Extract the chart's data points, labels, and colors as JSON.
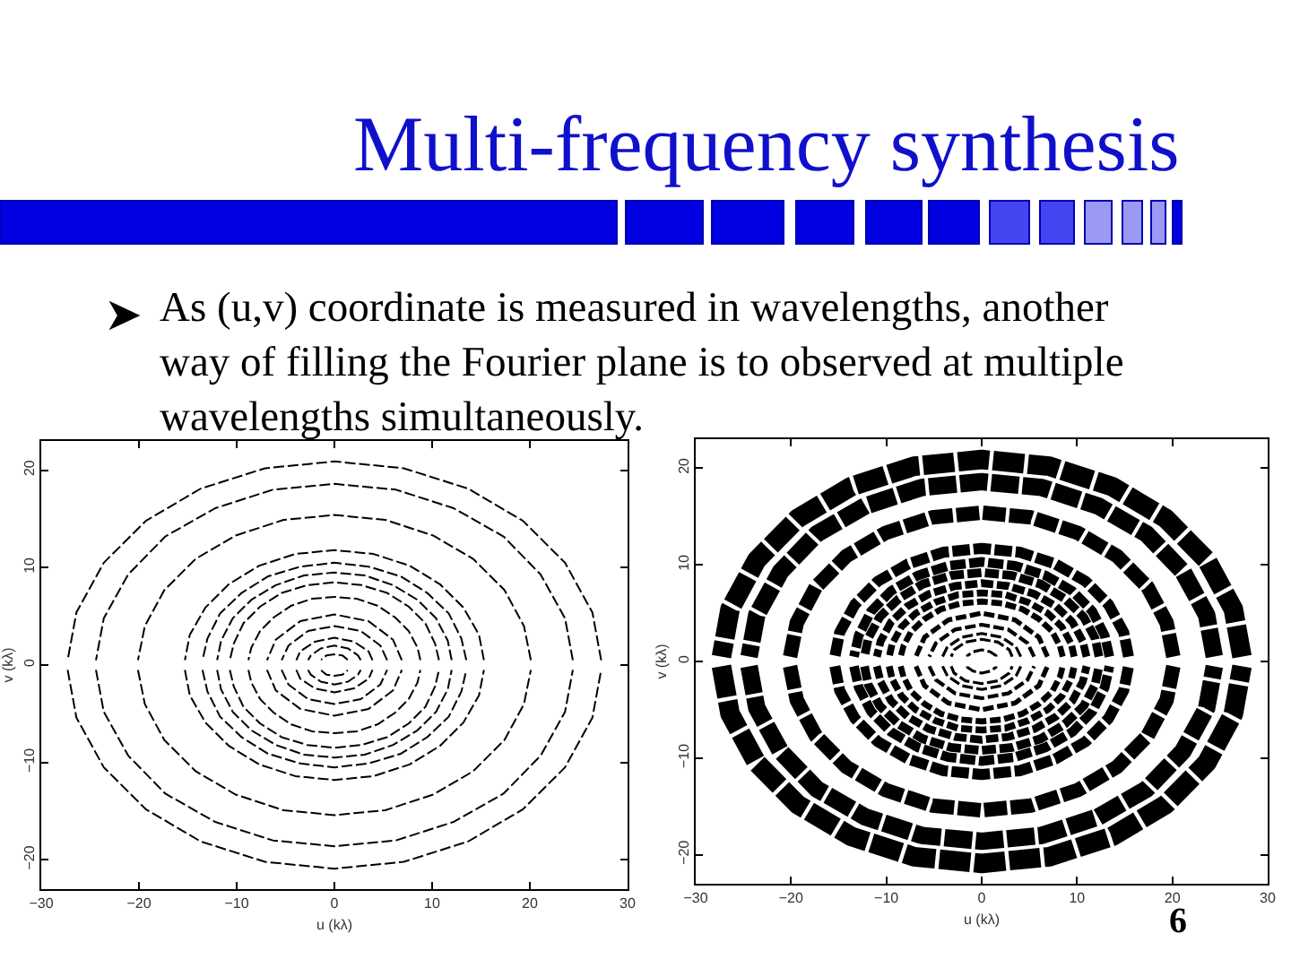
{
  "chart_data": [
    {
      "type": "line",
      "title": "Multi-frequency synthesis",
      "subtitle": "As (u,v) coordinate is measured in wavelengths, another\nway of filling the Fourier plane is to observed at multiple\nwavelengths simultaneously.",
      "xlabel": "u (kλ)",
      "ylabel": "v (kλ)",
      "xlim": [
        -30,
        30
      ],
      "ylim": [
        -23,
        23
      ],
      "xticks": [
        -30,
        -20,
        -10,
        0,
        10,
        20,
        30
      ],
      "yticks": [
        -20,
        -10,
        0,
        10,
        20
      ],
      "grid": false,
      "marker": "none",
      "line_style": "dashed",
      "series": [
        {
          "color": "#000000",
          "x": [
            27.3,
            26.4,
            23.6,
            19.3,
            13.7,
            7.1,
            0,
            -7.1,
            -13.7,
            -19.3,
            -23.6,
            -26.4,
            -27.3
          ],
          "values": [
            0.5,
            5.4,
            10.5,
            14.8,
            18.1,
            20.2,
            20.9,
            20.2,
            18.1,
            14.8,
            10.5,
            5.4,
            0.5
          ]
        },
        {
          "color": "#000000",
          "x": [
            -27.3,
            -26.4,
            -23.6,
            -19.3,
            -13.7,
            -7.1,
            0,
            7.1,
            13.7,
            19.3,
            23.6,
            26.4,
            27.3
          ],
          "values": [
            -0.5,
            -5.4,
            -10.5,
            -14.8,
            -18.1,
            -20.2,
            -20.9,
            -20.2,
            -18.1,
            -14.8,
            -10.5,
            -5.4,
            -0.5
          ]
        },
        {
          "color": "#000000",
          "x": [
            24.4,
            23.6,
            21.1,
            17.3,
            12.2,
            6.3,
            0,
            -6.3,
            -12.2,
            -17.3,
            -21.1,
            -23.6,
            -24.4
          ],
          "values": [
            0.5,
            4.8,
            9.3,
            13.2,
            16.1,
            18,
            18.6,
            18,
            16.1,
            13.2,
            9.3,
            4.8,
            0.5
          ]
        },
        {
          "color": "#000000",
          "x": [
            -24.4,
            -23.6,
            -21.1,
            -17.3,
            -12.2,
            -6.3,
            0,
            6.3,
            12.2,
            17.3,
            21.1,
            23.6,
            24.4
          ],
          "values": [
            -0.5,
            -4.8,
            -9.3,
            -13.2,
            -16.1,
            -18,
            -18.6,
            -18,
            -16.1,
            -13.2,
            -9.3,
            -4.8,
            -0.5
          ]
        },
        {
          "color": "#000000",
          "x": [
            20.1,
            19.4,
            17.4,
            14.2,
            10.1,
            5.2,
            0,
            -5.2,
            -10.1,
            -14.2,
            -17.4,
            -19.4,
            -20.1
          ],
          "values": [
            0.5,
            4,
            7.7,
            10.9,
            13.3,
            14.9,
            15.4,
            14.9,
            13.3,
            10.9,
            7.7,
            4,
            0.5
          ]
        },
        {
          "color": "#000000",
          "x": [
            -20.1,
            -19.4,
            -17.4,
            -14.2,
            -10.1,
            -5.2,
            0,
            5.2,
            10.1,
            14.2,
            17.4,
            19.4,
            20.1
          ],
          "values": [
            -0.5,
            -4,
            -7.7,
            -10.9,
            -13.3,
            -14.9,
            -15.4,
            -14.9,
            -13.3,
            -10.9,
            -7.7,
            -4,
            -0.5
          ]
        },
        {
          "color": "#000000",
          "x": [
            15.3,
            14.8,
            13.2,
            10.8,
            7.7,
            4,
            0,
            -4,
            -7.7,
            -10.8,
            -13.2,
            -14.8,
            -15.3
          ],
          "values": [
            0.5,
            3.1,
            5.9,
            8.3,
            10.2,
            11.4,
            11.8,
            11.4,
            10.2,
            8.3,
            5.9,
            3.1,
            0.5
          ]
        },
        {
          "color": "#000000",
          "x": [
            -15.3,
            -14.8,
            -13.2,
            -10.8,
            -7.7,
            -4,
            0,
            4,
            7.7,
            10.8,
            13.2,
            14.8,
            15.3
          ],
          "values": [
            -0.5,
            -3.1,
            -5.9,
            -8.3,
            -10.2,
            -11.4,
            -11.8,
            -11.4,
            -10.2,
            -8.3,
            -5.9,
            -3.1,
            -0.5
          ]
        },
        {
          "color": "#000000",
          "x": [
            13.5,
            13,
            11.7,
            9.5,
            6.8,
            3.5,
            0,
            -3.5,
            -6.8,
            -9.5,
            -11.7,
            -13,
            -13.5
          ],
          "values": [
            0.5,
            2.7,
            5.3,
            7.4,
            9.1,
            10.1,
            10.5,
            10.1,
            9.1,
            7.4,
            5.3,
            2.7,
            0.5
          ]
        },
        {
          "color": "#000000",
          "x": [
            -13.5,
            -13,
            -11.7,
            -9.5,
            -6.8,
            -3.5,
            0,
            3.5,
            6.8,
            9.5,
            11.7,
            13,
            13.5
          ],
          "values": [
            -0.5,
            -2.7,
            -5.3,
            -7.4,
            -9.1,
            -10.1,
            -10.5,
            -10.1,
            -9.1,
            -7.4,
            -5.3,
            -2.7,
            -0.5
          ]
        },
        {
          "color": "#000000",
          "x": [
            12,
            11.6,
            10.4,
            8.5,
            6,
            3.1,
            0,
            -3.1,
            -6,
            -8.5,
            -10.4,
            -11.6,
            -12
          ],
          "values": [
            0.5,
            2.5,
            4.8,
            6.7,
            8.2,
            9.2,
            9.5,
            9.2,
            8.2,
            6.7,
            4.8,
            2.5,
            0.5
          ]
        },
        {
          "color": "#000000",
          "x": [
            -12,
            -11.6,
            -10.4,
            -8.5,
            -6,
            -3.1,
            0,
            3.1,
            6,
            8.5,
            10.4,
            11.6,
            12
          ],
          "values": [
            -0.5,
            -2.5,
            -4.8,
            -6.7,
            -8.2,
            -9.2,
            -9.5,
            -9.2,
            -8.2,
            -6.7,
            -4.8,
            -2.5,
            -0.5
          ]
        },
        {
          "color": "#000000",
          "x": [
            10.7,
            10.3,
            9.3,
            7.6,
            5.4,
            2.8,
            0,
            -2.8,
            -5.4,
            -7.6,
            -9.3,
            -10.3,
            -10.7
          ],
          "values": [
            0.5,
            2.2,
            4.3,
            6,
            7.4,
            8.2,
            8.5,
            8.2,
            7.4,
            6,
            4.3,
            2.2,
            0.5
          ]
        },
        {
          "color": "#000000",
          "x": [
            -10.7,
            -10.3,
            -9.3,
            -7.6,
            -5.4,
            -2.8,
            0,
            2.8,
            5.4,
            7.6,
            9.3,
            10.3,
            10.7
          ],
          "values": [
            -0.5,
            -2.2,
            -4.3,
            -6,
            -7.4,
            -8.2,
            -8.5,
            -8.2,
            -7.4,
            -6,
            -4.3,
            -2.2,
            -0.5
          ]
        },
        {
          "color": "#000000",
          "x": [
            8.8,
            8.5,
            7.6,
            6.2,
            4.4,
            2.3,
            0,
            -2.3,
            -4.4,
            -6.2,
            -7.6,
            -8.5,
            -8.8
          ],
          "values": [
            0.5,
            1.8,
            3.5,
            4.9,
            6.1,
            6.8,
            7,
            6.8,
            6.1,
            4.9,
            3.5,
            1.8,
            0.5
          ]
        },
        {
          "color": "#000000",
          "x": [
            -8.8,
            -8.5,
            -7.6,
            -6.2,
            -4.4,
            -2.3,
            0,
            2.3,
            4.4,
            6.2,
            7.6,
            8.5,
            8.8
          ],
          "values": [
            -0.5,
            -1.8,
            -3.5,
            -4.9,
            -6.1,
            -6.8,
            -7,
            -6.8,
            -6.1,
            -4.9,
            -3.5,
            -1.8,
            -0.5
          ]
        },
        {
          "color": "#000000",
          "x": [
            6.9,
            6,
            3.5,
            0,
            -3.5,
            -6,
            -6.9
          ],
          "values": [
            0.5,
            2.6,
            4.5,
            5.2,
            4.5,
            2.6,
            0.5
          ]
        },
        {
          "color": "#000000",
          "x": [
            -6.9,
            -6,
            -3.5,
            0,
            3.5,
            6,
            6.9
          ],
          "values": [
            -0.5,
            -2.6,
            -4.5,
            -5.2,
            -4.5,
            -2.6,
            -0.5
          ]
        },
        {
          "color": "#000000",
          "x": [
            5.4,
            4.7,
            2.7,
            0,
            -2.7,
            -4.7,
            -5.4
          ],
          "values": [
            0.5,
            2,
            3.5,
            4,
            3.5,
            2,
            0.5
          ]
        },
        {
          "color": "#000000",
          "x": [
            -5.4,
            -4.7,
            -2.7,
            0,
            2.7,
            4.7,
            5.4
          ],
          "values": [
            -0.5,
            -2,
            -3.5,
            -4,
            -3.5,
            -2,
            -0.5
          ]
        },
        {
          "color": "#000000",
          "x": [
            3.9,
            3.5,
            2,
            0,
            -2,
            -3.5,
            -3.9
          ],
          "values": [
            0.5,
            1.4,
            2.4,
            2.8,
            2.4,
            1.4,
            0.5
          ]
        },
        {
          "color": "#000000",
          "x": [
            -3.9,
            -3.5,
            -2,
            0,
            2,
            3.5,
            3.9
          ],
          "values": [
            -0.5,
            -1.4,
            -2.4,
            -2.8,
            -2.4,
            -1.4,
            -0.5
          ]
        },
        {
          "color": "#000000",
          "x": [
            2.7,
            2.4,
            1.4,
            0,
            -1.4,
            -2.4,
            -2.7
          ],
          "values": [
            0.5,
            1,
            1.7,
            2,
            1.7,
            1,
            0.5
          ]
        },
        {
          "color": "#000000",
          "x": [
            -2.7,
            -2.4,
            -1.4,
            0,
            1.4,
            2.4,
            2.7
          ],
          "values": [
            -0.5,
            -1,
            -1.7,
            -2,
            -1.7,
            -1,
            -0.5
          ]
        },
        {
          "color": "#000000",
          "x": [
            1.3,
            1.3,
            0.8,
            0,
            -0.8,
            -1.3,
            -1.3
          ],
          "values": [
            0.5,
            0.6,
            1,
            1.1,
            1,
            0.6,
            0.5
          ]
        },
        {
          "color": "#000000",
          "x": [
            -1.3,
            -1.3,
            -0.8,
            0,
            0.8,
            1.3,
            1.3
          ],
          "values": [
            -0.5,
            -0.6,
            -1,
            -1.1,
            -1,
            -0.6,
            -0.5
          ]
        }
      ]
    },
    {
      "type": "line",
      "xlabel": "u (kλ)",
      "ylabel": "v (kλ)",
      "xlim": [
        -30,
        30
      ],
      "ylim": [
        -23,
        23
      ],
      "xticks": [
        -30,
        -20,
        -10,
        0,
        10,
        20,
        30
      ],
      "yticks": [
        -20,
        -10,
        0,
        10,
        20
      ],
      "grid": false,
      "marker": "none",
      "line_style": "dashed",
      "annotations": [
        "6"
      ],
      "series": [
        {
          "color": "#000000",
          "x": [
            27.3,
            26.4,
            23.6,
            19.3,
            13.7,
            7.1,
            0,
            -7.1,
            -13.7,
            -19.3,
            -23.6,
            -26.4,
            -27.3
          ],
          "values": [
            0.5,
            5.4,
            10.5,
            14.8,
            18.1,
            20.2,
            20.9,
            20.2,
            18.1,
            14.8,
            10.5,
            5.4,
            0.5
          ]
        },
        {
          "color": "#000000",
          "x": [
            -27.3,
            -26.4,
            -23.6,
            -19.3,
            -13.7,
            -7.1,
            0,
            7.1,
            13.7,
            19.3,
            23.6,
            26.4,
            27.3
          ],
          "values": [
            -0.5,
            -5.4,
            -10.5,
            -14.8,
            -18.1,
            -20.2,
            -20.9,
            -20.2,
            -18.1,
            -14.8,
            -10.5,
            -5.4,
            -0.5
          ]
        },
        {
          "color": "#000000",
          "x": [
            24.4,
            23.6,
            21.1,
            17.3,
            12.2,
            6.3,
            0,
            -6.3,
            -12.2,
            -17.3,
            -21.1,
            -23.6,
            -24.4
          ],
          "values": [
            0.5,
            4.8,
            9.3,
            13.2,
            16.1,
            18,
            18.6,
            18,
            16.1,
            13.2,
            9.3,
            4.8,
            0.5
          ]
        },
        {
          "color": "#000000",
          "x": [
            -24.4,
            -23.6,
            -21.1,
            -17.3,
            -12.2,
            -6.3,
            0,
            6.3,
            12.2,
            17.3,
            21.1,
            23.6,
            24.4
          ],
          "values": [
            -0.5,
            -4.8,
            -9.3,
            -13.2,
            -16.1,
            -18,
            -18.6,
            -18,
            -16.1,
            -13.2,
            -9.3,
            -4.8,
            -0.5
          ]
        },
        {
          "color": "#000000",
          "x": [
            20.1,
            19.4,
            17.4,
            14.2,
            10.1,
            5.2,
            0,
            -5.2,
            -10.1,
            -14.2,
            -17.4,
            -19.4,
            -20.1
          ],
          "values": [
            0.5,
            4,
            7.7,
            10.9,
            13.3,
            14.9,
            15.4,
            14.9,
            13.3,
            10.9,
            7.7,
            4,
            0.5
          ]
        },
        {
          "color": "#000000",
          "x": [
            -20.1,
            -19.4,
            -17.4,
            -14.2,
            -10.1,
            -5.2,
            0,
            5.2,
            10.1,
            14.2,
            17.4,
            19.4,
            20.1
          ],
          "values": [
            -0.5,
            -4,
            -7.7,
            -10.9,
            -13.3,
            -14.9,
            -15.4,
            -14.9,
            -13.3,
            -10.9,
            -7.7,
            -4,
            -0.5
          ]
        },
        {
          "color": "#000000",
          "x": [
            15.4,
            14.9,
            13.3,
            10.9,
            7.7,
            4,
            0,
            -4,
            -7.7,
            -10.9,
            -13.3,
            -14.9,
            -15.4
          ],
          "values": [
            0.5,
            3,
            5.9,
            8.3,
            10.1,
            11.3,
            11.7,
            11.3,
            10.1,
            8.3,
            5.9,
            3,
            0.5
          ]
        },
        {
          "color": "#000000",
          "x": [
            -15.4,
            -14.9,
            -13.3,
            -10.9,
            -7.7,
            -4,
            0,
            4,
            7.7,
            10.9,
            13.3,
            14.9,
            15.4
          ],
          "values": [
            -0.5,
            -3,
            -5.9,
            -8.3,
            -10.1,
            -11.3,
            -11.7,
            -11.3,
            -10.1,
            -8.3,
            -5.9,
            -3,
            -0.5
          ]
        },
        {
          "color": "#000000",
          "x": [
            13.4,
            12.9,
            11.6,
            9.5,
            6.7,
            3.5,
            0,
            -3.5,
            -6.7,
            -9.5,
            -11.6,
            -12.9,
            -13.4
          ],
          "values": [
            0.5,
            2.7,
            5.2,
            7.3,
            8.9,
            9.9,
            10.3,
            9.9,
            8.9,
            7.3,
            5.2,
            2.7,
            0.5
          ]
        },
        {
          "color": "#000000",
          "x": [
            -13.4,
            -12.9,
            -11.6,
            -9.5,
            -6.7,
            -3.5,
            0,
            3.5,
            6.7,
            9.5,
            11.6,
            12.9,
            13.4
          ],
          "values": [
            -0.5,
            -2.7,
            -5.2,
            -7.3,
            -8.9,
            -9.9,
            -10.3,
            -9.9,
            -8.9,
            -7.3,
            -5.2,
            -2.7,
            -0.5
          ]
        },
        {
          "color": "#000000",
          "x": [
            12.3,
            11.9,
            10.7,
            8.7,
            6.2,
            3.2,
            0,
            -3.2,
            -6.2,
            -8.7,
            -10.7,
            -11.9,
            -12.3
          ],
          "values": [
            0.5,
            2.4,
            4.6,
            6.5,
            8,
            8.9,
            9.2,
            8.9,
            8,
            6.5,
            4.6,
            2.4,
            0.5
          ]
        },
        {
          "color": "#000000",
          "x": [
            -12.3,
            -11.9,
            -10.7,
            -8.7,
            -6.2,
            -3.2,
            0,
            3.2,
            6.2,
            8.7,
            10.7,
            11.9,
            12.3
          ],
          "values": [
            -0.5,
            -2.4,
            -4.6,
            -6.5,
            -8,
            -8.9,
            -9.2,
            -8.9,
            -8,
            -6.5,
            -4.6,
            -2.4,
            -0.5
          ]
        },
        {
          "color": "#000000",
          "x": [
            11,
            10.6,
            9.5,
            7.8,
            5.5,
            2.8,
            0,
            -2.8,
            -5.5,
            -7.8,
            -9.5,
            -10.6,
            -11
          ],
          "values": [
            0.5,
            2.1,
            4.1,
            5.7,
            7,
            7.8,
            8.1,
            7.8,
            7,
            5.7,
            4.1,
            2.1,
            0.5
          ]
        },
        {
          "color": "#000000",
          "x": [
            -11,
            -10.6,
            -9.5,
            -7.8,
            -5.5,
            -2.8,
            0,
            2.8,
            5.5,
            7.8,
            9.5,
            10.6,
            11
          ],
          "values": [
            -0.5,
            -2.1,
            -4.1,
            -5.7,
            -7,
            -7.8,
            -8.1,
            -7.8,
            -7,
            -5.7,
            -4.1,
            -2.1,
            -0.5
          ]
        },
        {
          "color": "#000000",
          "x": [
            9.7,
            9.4,
            8.4,
            6.9,
            4.9,
            2.5,
            0,
            -2.5,
            -4.9,
            -6.9,
            -8.4,
            -9.4,
            -9.7
          ],
          "values": [
            0.5,
            1.8,
            3.6,
            5,
            6.1,
            6.9,
            7.1,
            6.9,
            6.1,
            5,
            3.6,
            1.8,
            0.5
          ]
        },
        {
          "color": "#000000",
          "x": [
            -9.7,
            -9.4,
            -8.4,
            -6.9,
            -4.9,
            -2.5,
            0,
            2.5,
            4.9,
            6.9,
            8.4,
            9.4,
            9.7
          ],
          "values": [
            -0.5,
            -1.8,
            -3.6,
            -5,
            -6.1,
            -6.9,
            -7.1,
            -6.9,
            -6.1,
            -5,
            -3.6,
            -1.8,
            -0.5
          ]
        },
        {
          "color": "#000000",
          "x": [
            8.5,
            8.2,
            7.4,
            6,
            4.3,
            2.2,
            0,
            -2.2,
            -4.3,
            -6,
            -7.4,
            -8.2,
            -8.5
          ],
          "values": [
            0.5,
            1.6,
            3.1,
            4.4,
            5.4,
            6,
            6.2,
            6,
            5.4,
            4.4,
            3.1,
            1.6,
            0.5
          ]
        },
        {
          "color": "#000000",
          "x": [
            -8.5,
            -8.2,
            -7.4,
            -6,
            -4.3,
            -2.2,
            0,
            2.2,
            4.3,
            6,
            7.4,
            8.2,
            8.5
          ],
          "values": [
            -0.5,
            -1.6,
            -3.1,
            -4.4,
            -5.4,
            -6,
            -6.2,
            -6,
            -5.4,
            -4.4,
            -3.1,
            -1.6,
            -0.5
          ]
        },
        {
          "color": "#000000",
          "x": [
            6.9,
            6,
            3.5,
            0,
            -3.5,
            -6,
            -6.9
          ],
          "values": [
            0.5,
            2.5,
            4.3,
            5,
            4.3,
            2.5,
            0.5
          ]
        },
        {
          "color": "#000000",
          "x": [
            -6.9,
            -6,
            -3.5,
            0,
            3.5,
            6,
            6.9
          ],
          "values": [
            -0.5,
            -2.5,
            -4.3,
            -5,
            -4.3,
            -2.5,
            -0.5
          ]
        },
        {
          "color": "#000000",
          "x": [
            5.5,
            4.8,
            2.8,
            0,
            -2.8,
            -4.8,
            -5.5
          ],
          "values": [
            0.5,
            1.9,
            3.3,
            3.8,
            3.3,
            1.9,
            0.5
          ]
        },
        {
          "color": "#000000",
          "x": [
            -5.5,
            -4.8,
            -2.8,
            0,
            2.8,
            4.8,
            5.5
          ],
          "values": [
            -0.5,
            -1.9,
            -3.3,
            -3.8,
            -3.3,
            -1.9,
            -0.5
          ]
        },
        {
          "color": "#000000",
          "x": [
            4.1,
            3.6,
            2.1,
            0,
            -2.1,
            -3.6,
            -4.1
          ],
          "values": [
            0.5,
            1.5,
            2.5,
            2.9,
            2.5,
            1.5,
            0.5
          ]
        },
        {
          "color": "#000000",
          "x": [
            -4.1,
            -3.6,
            -2.1,
            0,
            2.1,
            3.6,
            4.1
          ],
          "values": [
            -0.5,
            -1.5,
            -2.5,
            -2.9,
            -2.5,
            -1.5,
            -0.5
          ]
        },
        {
          "color": "#000000",
          "x": [
            3.2,
            2.9,
            1.7,
            0,
            -1.7,
            -2.9,
            -3.2
          ],
          "values": [
            0.5,
            1.2,
            2,
            2.3,
            2,
            1.2,
            0.5
          ]
        },
        {
          "color": "#000000",
          "x": [
            -3.2,
            -2.9,
            -1.7,
            0,
            1.7,
            2.9,
            3.2
          ],
          "values": [
            -0.5,
            -1.2,
            -2,
            -2.3,
            -2,
            -1.2,
            -0.5
          ]
        },
        {
          "color": "#000000",
          "x": [
            1.5,
            1.5,
            0.9,
            0,
            -0.9,
            -1.5,
            -1.5
          ],
          "values": [
            0.5,
            0.6,
            1,
            1.2,
            1,
            0.6,
            0.5
          ]
        },
        {
          "color": "#000000",
          "x": [
            -1.5,
            -1.5,
            -0.9,
            0,
            0.9,
            1.5,
            1.5
          ],
          "values": [
            -0.5,
            -0.6,
            -1,
            -1.2,
            -1,
            -0.6,
            -0.5
          ]
        }
      ]
    }
  ]
}
